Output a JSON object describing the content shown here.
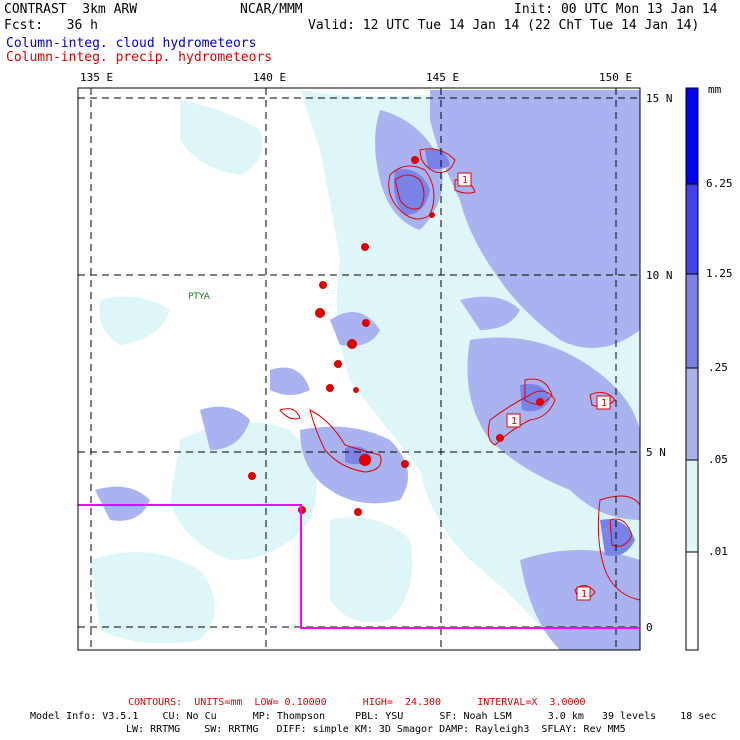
{
  "header": {
    "model": "CONTRAST  3km ARW",
    "org": "NCAR/MMM",
    "init": "Init: 00 UTC Mon 13 Jan 14",
    "fcst": "Fcst:   36 h",
    "valid": "Valid: 12 UTC Tue 14 Jan 14 (22 ChT Tue 14 Jan 14)",
    "field1": "Column-integ. cloud hydrometeors",
    "field2": "Column-integ. precip. hydrometeors",
    "field1_color": "#0000cc",
    "field2_color": "#e00000"
  },
  "map": {
    "lon_labels": [
      "135 E",
      "140 E",
      "145 E",
      "150 E"
    ],
    "lat_labels": [
      "15 N",
      "10 N",
      "5 N",
      "0"
    ],
    "lon_values": [
      135,
      140,
      145,
      150
    ],
    "lat_values": [
      15,
      10,
      5,
      0
    ],
    "station_label": "PTYA",
    "contour_label": "1",
    "colors": {
      "light": "#ddf6f8",
      "medium": "#a9b3ef",
      "dark": "#8893e8",
      "precip": "#e00000",
      "box": "#ff00ff"
    }
  },
  "colorbar": {
    "unit": "mm",
    "levels": [
      "6.25",
      "1.25",
      ".25",
      ".05",
      ".01"
    ],
    "colors": [
      "#0000ff",
      "#4141ee",
      "#7a84e8",
      "#a9b3ef",
      "#ddf6f8",
      "#ffffff"
    ]
  },
  "footer": {
    "contours_line": "CONTOURS:  UNITS=mm  LOW= 0.10000      HIGH=  24.300      INTERVAL=X  3.0000",
    "model_info_1": "Model Info: V3.5.1    CU: No Cu      MP: Thompson     PBL: YSU      SF: Noah LSM      3.0 km   39 levels    18 sec",
    "model_info_2": "LW: RRTMG    SW: RRTMG   DIFF: simple KM: 3D Smagor DAMP: Rayleigh3  SFLAY: Rev MM5"
  }
}
